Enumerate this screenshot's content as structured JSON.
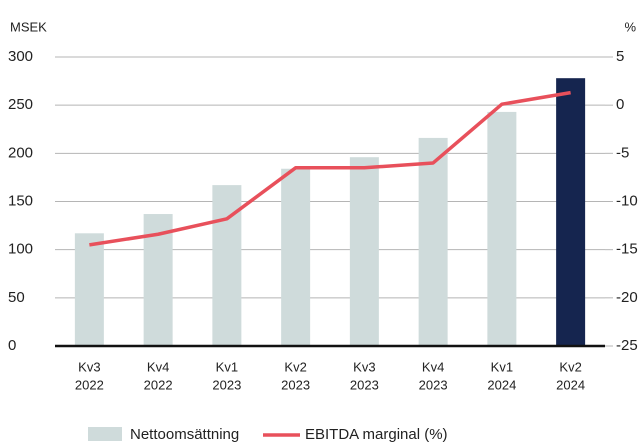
{
  "chart_data": {
    "type": "bar_line",
    "y_label": "MSEK",
    "y2_label": "%",
    "categories": [
      [
        "Kv3",
        "2022"
      ],
      [
        "Kv4",
        "2022"
      ],
      [
        "Kv1",
        "2023"
      ],
      [
        "Kv2",
        "2023"
      ],
      [
        "Kv3",
        "2023"
      ],
      [
        "Kv4",
        "2023"
      ],
      [
        "Kv1",
        "2024"
      ],
      [
        "Kv2",
        "2024"
      ]
    ],
    "series": [
      {
        "name": "Nettoomsättning",
        "type": "bar",
        "color": "#cfdbdb",
        "colors": [
          "#cfdbdb",
          "#cfdbdb",
          "#cfdbdb",
          "#cfdbdb",
          "#cfdbdb",
          "#cfdbdb",
          "#cfdbdb",
          "#15254f"
        ],
        "values": [
          117,
          137,
          167,
          184,
          196,
          216,
          243,
          278
        ]
      },
      {
        "name": "EBITDA marginal (%)",
        "type": "line",
        "axis": "y2",
        "color": "#e8505b",
        "values": [
          -14.5,
          -13.4,
          -11.8,
          -6.5,
          -6.5,
          -6.0,
          0.1,
          1.3
        ]
      }
    ],
    "ylim": [
      0,
      300
    ],
    "yticks": [
      0,
      50,
      100,
      150,
      200,
      250,
      300
    ],
    "y2lim": [
      -25,
      5
    ],
    "y2ticks": [
      -25,
      -20,
      -15,
      -10,
      -5,
      0,
      5
    ],
    "grid": true,
    "legend": "bottom"
  }
}
